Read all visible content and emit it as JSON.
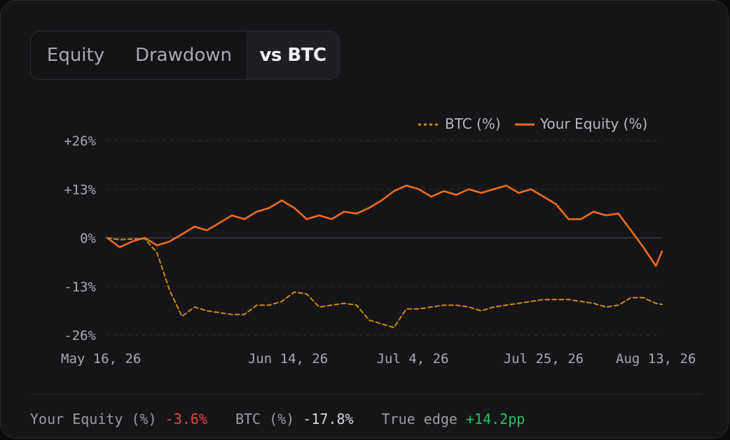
{
  "tabs": [
    {
      "label": "Equity"
    },
    {
      "label": "Drawdown"
    },
    {
      "label": "vs BTC",
      "active": true
    }
  ],
  "colors": {
    "equity": "#f26b1d",
    "btc": "#c98a10",
    "grid": "#2e2e33",
    "zero_line": "#3a3a40",
    "tick_text": "#a9a9ae",
    "negative": "#ef4444",
    "positive": "#22c55e"
  },
  "chart_data": {
    "type": "line",
    "legend_position": "top-right",
    "grid": true,
    "yticks": [
      "+26%",
      "+13%",
      "0%",
      "-13%",
      "-26%"
    ],
    "ytick_values": [
      26,
      13,
      0,
      -13,
      -26
    ],
    "ylim": [
      -26,
      26
    ],
    "xlim": [
      "2026-05-16",
      "2026-08-13"
    ],
    "xticks": [
      "May 16, 26",
      "Jun 14, 26",
      "Jul 4, 26",
      "Jul 25, 26",
      "Aug 13, 26"
    ],
    "xtick_dates": [
      "2026-05-16",
      "2026-06-14",
      "2026-07-04",
      "2026-07-25",
      "2026-08-13"
    ],
    "series": [
      {
        "name": "BTC (%)",
        "style": "dashed",
        "color": "#c98a10",
        "points": [
          [
            "2026-05-16",
            0
          ],
          [
            "2026-05-18",
            -0.5
          ],
          [
            "2026-05-20",
            -0.3
          ],
          [
            "2026-05-22",
            -0.2
          ],
          [
            "2026-05-24",
            -4
          ],
          [
            "2026-05-26",
            -14
          ],
          [
            "2026-05-28",
            -21
          ],
          [
            "2026-05-30",
            -18.5
          ],
          [
            "2026-06-01",
            -19.5
          ],
          [
            "2026-06-03",
            -20
          ],
          [
            "2026-06-05",
            -20.5
          ],
          [
            "2026-06-07",
            -20.5
          ],
          [
            "2026-06-09",
            -18
          ],
          [
            "2026-06-11",
            -18
          ],
          [
            "2026-06-13",
            -17
          ],
          [
            "2026-06-15",
            -14.5
          ],
          [
            "2026-06-17",
            -15
          ],
          [
            "2026-06-19",
            -18.5
          ],
          [
            "2026-06-21",
            -18
          ],
          [
            "2026-06-23",
            -17.5
          ],
          [
            "2026-06-25",
            -18
          ],
          [
            "2026-06-27",
            -22
          ],
          [
            "2026-06-29",
            -23
          ],
          [
            "2026-07-01",
            -24
          ],
          [
            "2026-07-03",
            -19
          ],
          [
            "2026-07-05",
            -19
          ],
          [
            "2026-07-07",
            -18.5
          ],
          [
            "2026-07-09",
            -18
          ],
          [
            "2026-07-11",
            -18
          ],
          [
            "2026-07-13",
            -18.5
          ],
          [
            "2026-07-15",
            -19.5
          ],
          [
            "2026-07-17",
            -18.5
          ],
          [
            "2026-07-19",
            -18
          ],
          [
            "2026-07-21",
            -17.5
          ],
          [
            "2026-07-23",
            -17
          ],
          [
            "2026-07-25",
            -16.5
          ],
          [
            "2026-07-27",
            -16.5
          ],
          [
            "2026-07-29",
            -16.5
          ],
          [
            "2026-07-31",
            -17
          ],
          [
            "2026-08-02",
            -17.5
          ],
          [
            "2026-08-04",
            -18.5
          ],
          [
            "2026-08-06",
            -18
          ],
          [
            "2026-08-08",
            -16
          ],
          [
            "2026-08-10",
            -16
          ],
          [
            "2026-08-12",
            -17.5
          ],
          [
            "2026-08-13",
            -17.8
          ]
        ]
      },
      {
        "name": "Your Equity (%)",
        "style": "solid",
        "color": "#f26b1d",
        "points": [
          [
            "2026-05-16",
            0
          ],
          [
            "2026-05-18",
            -2.5
          ],
          [
            "2026-05-20",
            -1
          ],
          [
            "2026-05-22",
            0
          ],
          [
            "2026-05-24",
            -2
          ],
          [
            "2026-05-26",
            -1
          ],
          [
            "2026-05-28",
            1
          ],
          [
            "2026-05-30",
            3
          ],
          [
            "2026-06-01",
            2
          ],
          [
            "2026-06-03",
            4
          ],
          [
            "2026-06-05",
            6
          ],
          [
            "2026-06-07",
            5
          ],
          [
            "2026-06-09",
            7
          ],
          [
            "2026-06-11",
            8
          ],
          [
            "2026-06-13",
            10
          ],
          [
            "2026-06-15",
            8
          ],
          [
            "2026-06-17",
            5
          ],
          [
            "2026-06-19",
            6
          ],
          [
            "2026-06-21",
            5
          ],
          [
            "2026-06-23",
            7
          ],
          [
            "2026-06-25",
            6.5
          ],
          [
            "2026-06-27",
            8
          ],
          [
            "2026-06-29",
            10
          ],
          [
            "2026-07-01",
            12.5
          ],
          [
            "2026-07-03",
            14
          ],
          [
            "2026-07-05",
            13
          ],
          [
            "2026-07-07",
            11
          ],
          [
            "2026-07-09",
            12.5
          ],
          [
            "2026-07-11",
            11.5
          ],
          [
            "2026-07-13",
            13
          ],
          [
            "2026-07-15",
            12
          ],
          [
            "2026-07-17",
            13
          ],
          [
            "2026-07-19",
            14
          ],
          [
            "2026-07-21",
            12
          ],
          [
            "2026-07-23",
            13
          ],
          [
            "2026-07-25",
            11
          ],
          [
            "2026-07-27",
            9
          ],
          [
            "2026-07-29",
            5
          ],
          [
            "2026-07-31",
            5
          ],
          [
            "2026-08-02",
            7
          ],
          [
            "2026-08-04",
            6
          ],
          [
            "2026-08-06",
            6.5
          ],
          [
            "2026-08-08",
            2
          ],
          [
            "2026-08-10",
            -2.5
          ],
          [
            "2026-08-12",
            -7.5
          ],
          [
            "2026-08-13",
            -3.6
          ]
        ]
      }
    ]
  },
  "summary": {
    "equity_label": "Your Equity (%)",
    "equity_value": "-3.6%",
    "btc_label": "BTC (%)",
    "btc_value": "-17.8%",
    "edge_label": "True edge",
    "edge_value": "+14.2pp"
  }
}
